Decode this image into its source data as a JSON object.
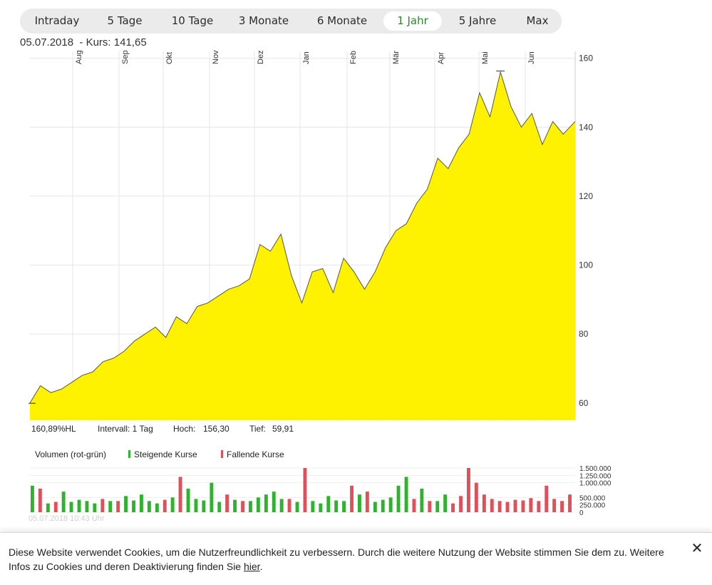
{
  "tabs": [
    {
      "label": "Intraday",
      "active": false
    },
    {
      "label": "5 Tage",
      "active": false
    },
    {
      "label": "10 Tage",
      "active": false
    },
    {
      "label": "3 Monate",
      "active": false
    },
    {
      "label": "6 Monate",
      "active": false
    },
    {
      "label": "1 Jahr",
      "active": true
    },
    {
      "label": "5 Jahre",
      "active": false
    },
    {
      "label": "Max",
      "active": false
    }
  ],
  "quote": {
    "date": "05.07.2018",
    "label": "- Kurs:",
    "value": "141,65"
  },
  "stats": {
    "change": "160,89%HL",
    "interval": "Intervall: 1 Tag",
    "high_label": "Hoch:",
    "high": "156,30",
    "low_label": "Tief:",
    "low": "59,91"
  },
  "volume_legend": {
    "title": "Volumen (rot-grün)",
    "rising": "Steigende Kurse",
    "falling": "Fallende Kurse"
  },
  "timestamp": "05.07.2018 10:43 Uhr",
  "cookie": {
    "text": "Diese Website verwendet Cookies, um die Nutzerfreundlichkeit zu verbessern. Durch die weitere Nutzung der Website stimmen Sie dem zu. Weitere Infos zu Cookies und deren Deaktivierung finden Sie ",
    "link": "hier",
    "end": ".",
    "close_icon": "close-icon"
  },
  "colors": {
    "area": "#fff200",
    "line": "#555555",
    "up": "#2fb32f",
    "down": "#e0505a",
    "active_tab": "#2a8a2a"
  },
  "chart_data": [
    {
      "type": "area",
      "x": [
        "2017-07-05",
        "2017-07-12",
        "2017-07-19",
        "2017-07-26",
        "2017-08-02",
        "2017-08-09",
        "2017-08-16",
        "2017-08-23",
        "2017-08-30",
        "2017-09-06",
        "2017-09-13",
        "2017-09-20",
        "2017-09-27",
        "2017-10-04",
        "2017-10-11",
        "2017-10-18",
        "2017-10-25",
        "2017-11-01",
        "2017-11-08",
        "2017-11-15",
        "2017-11-22",
        "2017-11-29",
        "2017-12-06",
        "2017-12-13",
        "2017-12-20",
        "2017-12-27",
        "2018-01-03",
        "2018-01-10",
        "2018-01-17",
        "2018-01-24",
        "2018-01-31",
        "2018-02-07",
        "2018-02-14",
        "2018-02-21",
        "2018-02-28",
        "2018-03-07",
        "2018-03-14",
        "2018-03-21",
        "2018-03-28",
        "2018-04-04",
        "2018-04-11",
        "2018-04-18",
        "2018-04-25",
        "2018-05-02",
        "2018-05-09",
        "2018-05-16",
        "2018-05-23",
        "2018-05-30",
        "2018-06-06",
        "2018-06-13",
        "2018-06-20",
        "2018-06-27",
        "2018-07-05"
      ],
      "values": [
        60,
        65,
        63,
        64,
        66,
        68,
        69,
        72,
        73,
        75,
        78,
        80,
        82,
        79,
        85,
        83,
        88,
        89,
        91,
        93,
        94,
        96,
        106,
        104,
        109,
        97,
        89,
        98,
        99,
        92,
        102,
        98,
        93,
        98,
        105,
        110,
        112,
        118,
        122,
        131,
        128,
        134,
        138,
        150,
        143,
        156,
        146,
        140,
        144,
        135,
        141.65,
        138,
        141.65
      ],
      "ylim": [
        55,
        162
      ],
      "yticks": [
        60,
        80,
        100,
        120,
        140,
        160
      ],
      "month_labels": [
        "Aug",
        "Sep",
        "Okt",
        "Nov",
        "Dez",
        "Jan",
        "Feb",
        "Mär",
        "Apr",
        "Mai",
        "Jun"
      ],
      "high": 156.3,
      "low": 59.91
    },
    {
      "type": "bar",
      "title": "Volumen (rot-grün)",
      "yticks": [
        "0",
        "250.000",
        "500.000",
        "1.000.000",
        "1.250.000",
        "1.500.000"
      ],
      "ylim": [
        0,
        1500000
      ],
      "series": [
        {
          "name": "Steigende Kurse",
          "values": [
            900000,
            300000,
            700000,
            350000,
            420000,
            380000,
            300000,
            380000,
            550000,
            400000,
            600000,
            380000,
            300000,
            500000,
            800000,
            450000,
            400000,
            1000000,
            350000,
            420000,
            380000,
            500000,
            600000,
            700000,
            450000,
            350000,
            380000,
            300000,
            550000,
            400000,
            380000,
            600000,
            350000,
            420000,
            500000,
            900000,
            1200000,
            800000,
            380000,
            600000
          ]
        },
        {
          "name": "Fallende Kurse",
          "values": [
            800000,
            350000,
            450000,
            380000,
            420000,
            1200000,
            600000,
            380000,
            450000,
            1500000,
            900000,
            700000,
            450000,
            380000,
            300000,
            550000,
            1500000,
            1000000,
            600000,
            450000,
            380000,
            350000,
            420000,
            400000,
            480000,
            380000,
            900000,
            450000,
            380000,
            600000
          ]
        }
      ]
    }
  ]
}
